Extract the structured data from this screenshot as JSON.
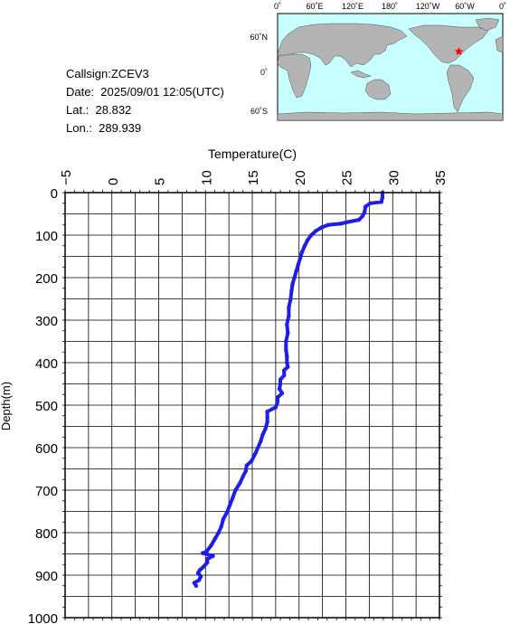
{
  "info": {
    "callsign": "Callsign:ZCEV3",
    "date": "Date:  2025/09/01 12:05(UTC)",
    "lat": "Lat.:  28.832",
    "lon": "Lon.:  289.939"
  },
  "map": {
    "top_labels": [
      "0˚",
      "60˚E",
      "120˚E",
      "180˚",
      "120˚W",
      "60˚W",
      "0˚"
    ],
    "left_labels": [
      "60˚N",
      "0˚",
      "60˚S"
    ],
    "ocean_color": "#c8ffff",
    "land_color": "#b4b4b4",
    "marker": {
      "lat": 28.832,
      "lon": 289.939,
      "color": "#ff0000",
      "icon": "star-icon"
    }
  },
  "chart_data": {
    "type": "line",
    "xlabel": "Temperature(C)",
    "ylabel": "Depth(m)",
    "xlim": [
      -5,
      35
    ],
    "ylim": [
      0,
      1000
    ],
    "x_ticks": [
      "−5",
      "0",
      "5",
      "10",
      "15",
      "20",
      "25",
      "30",
      "35"
    ],
    "y_ticks": [
      "0",
      "100",
      "200",
      "300",
      "400",
      "500",
      "600",
      "700",
      "800",
      "900",
      "1000"
    ],
    "grid": true,
    "line_color": "#1e1ee6",
    "series": [
      {
        "points": [
          [
            28.9,
            0
          ],
          [
            28.9,
            12
          ],
          [
            28.8,
            22
          ],
          [
            27.6,
            25
          ],
          [
            27.1,
            33
          ],
          [
            27.0,
            45
          ],
          [
            26.8,
            55
          ],
          [
            26.4,
            64
          ],
          [
            25.0,
            70
          ],
          [
            24.5,
            73
          ],
          [
            23.1,
            76
          ],
          [
            22.4,
            82
          ],
          [
            21.8,
            90
          ],
          [
            21.3,
            100
          ],
          [
            20.9,
            112
          ],
          [
            20.6,
            125
          ],
          [
            20.3,
            140
          ],
          [
            20.1,
            155
          ],
          [
            19.9,
            170
          ],
          [
            19.7,
            185
          ],
          [
            19.5,
            200
          ],
          [
            19.3,
            215
          ],
          [
            19.2,
            230
          ],
          [
            19.1,
            250
          ],
          [
            18.9,
            270
          ],
          [
            18.9,
            290
          ],
          [
            18.7,
            310
          ],
          [
            18.8,
            330
          ],
          [
            18.6,
            350
          ],
          [
            18.6,
            370
          ],
          [
            18.7,
            385
          ],
          [
            18.7,
            400
          ],
          [
            18.8,
            410
          ],
          [
            18.4,
            418
          ],
          [
            18.4,
            430
          ],
          [
            18.0,
            440
          ],
          [
            18.0,
            450
          ],
          [
            17.9,
            462
          ],
          [
            18.2,
            472
          ],
          [
            17.7,
            482
          ],
          [
            17.7,
            493
          ],
          [
            17.5,
            505
          ],
          [
            16.6,
            515
          ],
          [
            16.6,
            528
          ],
          [
            16.6,
            540
          ],
          [
            16.4,
            556
          ],
          [
            16.1,
            570
          ],
          [
            15.9,
            585
          ],
          [
            15.6,
            600
          ],
          [
            15.3,
            615
          ],
          [
            14.9,
            632
          ],
          [
            14.4,
            642
          ],
          [
            14.3,
            655
          ],
          [
            14.0,
            668
          ],
          [
            13.7,
            683
          ],
          [
            13.2,
            700
          ],
          [
            12.9,
            718
          ],
          [
            12.6,
            735
          ],
          [
            12.3,
            752
          ],
          [
            11.9,
            768
          ],
          [
            11.7,
            785
          ],
          [
            11.4,
            800
          ],
          [
            11.0,
            815
          ],
          [
            10.6,
            830
          ],
          [
            10.1,
            845
          ],
          [
            9.7,
            848
          ],
          [
            10.8,
            855
          ],
          [
            10.2,
            862
          ],
          [
            10.2,
            870
          ],
          [
            9.8,
            880
          ],
          [
            9.4,
            888
          ],
          [
            9.2,
            895
          ],
          [
            9.5,
            903
          ],
          [
            9.3,
            912
          ],
          [
            8.8,
            918
          ],
          [
            9.0,
            925
          ]
        ]
      }
    ]
  }
}
